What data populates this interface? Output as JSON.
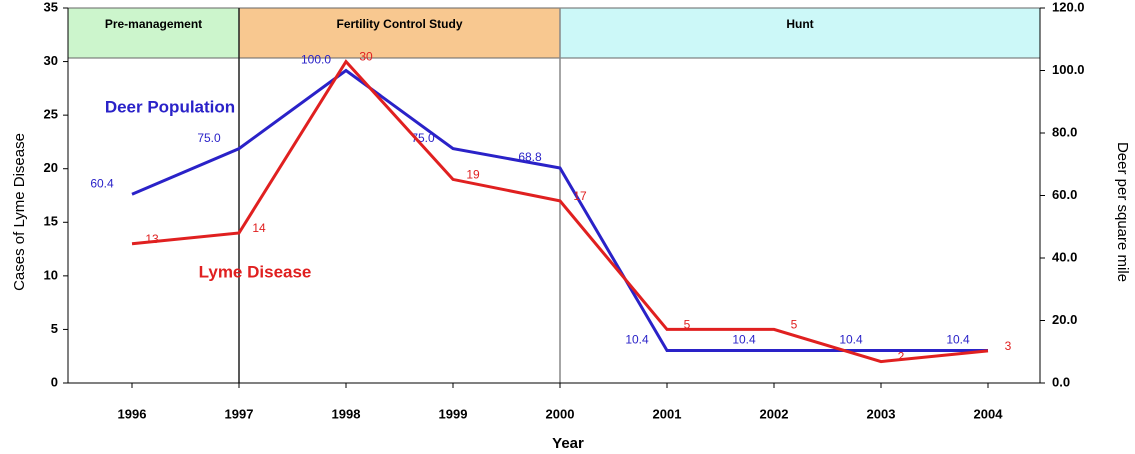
{
  "chart_data": {
    "type": "line",
    "x_label": "Year",
    "y_label": "Cases of Lyme Disease",
    "y2_label": "Deer per square mile",
    "categories": [
      "1996",
      "1997",
      "1998",
      "1999",
      "2000",
      "2001",
      "2002",
      "2003",
      "2004"
    ],
    "series": [
      {
        "name": "Deer Population",
        "color": "#2a22c8",
        "axis": "y2",
        "values": [
          60.4,
          75.0,
          100.0,
          75.0,
          68.8,
          10.4,
          10.4,
          10.4,
          10.4
        ],
        "value_labels": [
          "60.4",
          "75.0",
          "100.0",
          "75.0",
          "68.8",
          "10.4",
          "10.4",
          "10.4",
          "10.4"
        ]
      },
      {
        "name": "Lyme Disease",
        "color": "#e02020",
        "values": [
          13,
          14,
          30,
          19,
          17,
          5,
          5,
          2,
          3
        ]
      }
    ],
    "ylim": [
      0,
      35
    ],
    "yticks": [
      0,
      5,
      10,
      15,
      20,
      25,
      30,
      35
    ],
    "y2lim": [
      0,
      120
    ],
    "y2ticks": [
      {
        "value": 0,
        "label": "0.0"
      },
      {
        "value": 20,
        "label": "20.0"
      },
      {
        "value": 40,
        "label": "40.0"
      },
      {
        "value": 60,
        "label": "60.0"
      },
      {
        "value": 80,
        "label": "80.0"
      },
      {
        "value": 100,
        "label": "100.0"
      },
      {
        "value": 120,
        "label": "120.0"
      }
    ],
    "phases": [
      {
        "label": "Pre-management",
        "color": "#ccf5cc",
        "end": "1997"
      },
      {
        "label": "Fertility Control Study",
        "color": "#f8c890",
        "start": "1997",
        "end": "2000"
      },
      {
        "label": "Hunt",
        "color": "#ccf8f8",
        "start": "2000"
      }
    ]
  }
}
